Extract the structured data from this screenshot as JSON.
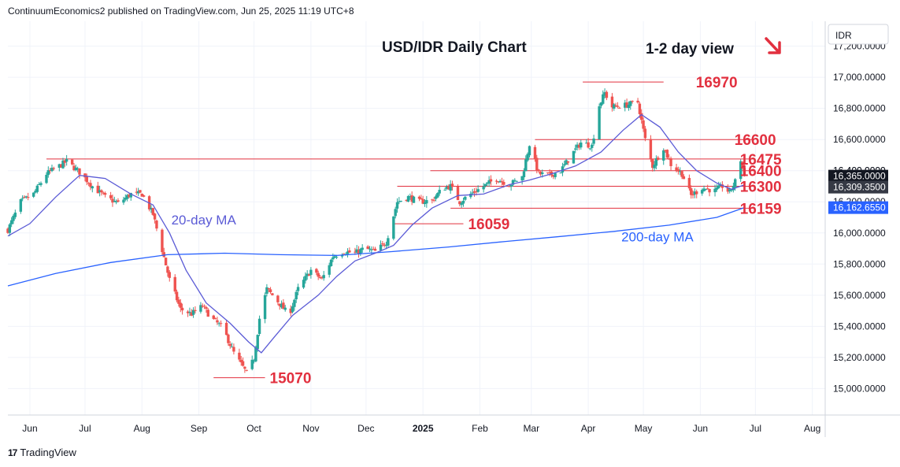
{
  "header": {
    "publisher_line": "ContinuumEconomics2 published on TradingView.com, Jun 25, 2025 11:19 UTC+8"
  },
  "footer": {
    "brand": "TradingView",
    "logo_glyph": "17"
  },
  "colors": {
    "bull": "#26a69a",
    "bear": "#ef5350",
    "annotation_red": "#e2303f",
    "ma_color": "#5b5bd6",
    "line_color": "#e2303f",
    "axis_badge_dark": "#131722",
    "axis_badge_price": "#363a45",
    "axis_badge_blue": "#2962ff"
  },
  "chart_data": {
    "type": "candlestick",
    "title": "USD/IDR Daily Chart",
    "subtitle": "1-2 day view",
    "view_arrow": "down-right-arrow",
    "currency_label": "IDR",
    "ylim": [
      14830,
      17360
    ],
    "y_ticks": [
      15000,
      15200,
      15400,
      15600,
      15800,
      16000,
      16200,
      16400,
      16600,
      16800,
      17000,
      17200
    ],
    "y_tick_labels": [
      "15,000.0000",
      "15,200.0000",
      "15,400.0000",
      "15,600.0000",
      "15,800.0000",
      "16,000.0000",
      "16,200.0000",
      "16,400.0000",
      "16,600.0000",
      "16,800.0000",
      "17,000.0000",
      "17,200.0000"
    ],
    "x_ticks": [
      "2024-06-01",
      "2024-07-01",
      "2024-08-01",
      "2024-09-01",
      "2024-10-01",
      "2024-11-01",
      "2024-12-01",
      "2025-01-01",
      "2025-02-01",
      "2025-03-01",
      "2025-04-01",
      "2025-05-01",
      "2025-06-01",
      "2025-07-01",
      "2025-08-01"
    ],
    "x_tick_labels": [
      "Jun",
      "Jul",
      "Aug",
      "Sep",
      "Oct",
      "Nov",
      "Dec",
      "2025",
      "Feb",
      "Mar",
      "Apr",
      "May",
      "Jun",
      "Jul",
      "Aug"
    ],
    "x_bold": [
      false,
      false,
      false,
      false,
      false,
      false,
      false,
      true,
      false,
      false,
      false,
      false,
      false,
      false,
      false
    ],
    "x_range": [
      "2024-05-20",
      "2025-08-08"
    ],
    "plot_end": "2025-08-12",
    "price_path": [
      [
        "2024-05-20",
        16020
      ],
      [
        "2024-05-27",
        16200
      ],
      [
        "2024-06-03",
        16250
      ],
      [
        "2024-06-10",
        16380
      ],
      [
        "2024-06-17",
        16430
      ],
      [
        "2024-06-21",
        16460
      ],
      [
        "2024-06-28",
        16390
      ],
      [
        "2024-07-05",
        16300
      ],
      [
        "2024-07-12",
        16230
      ],
      [
        "2024-07-19",
        16190
      ],
      [
        "2024-07-26",
        16250
      ],
      [
        "2024-08-01",
        16250
      ],
      [
        "2024-08-07",
        16120
      ],
      [
        "2024-08-12",
        15890
      ],
      [
        "2024-08-16",
        15700
      ],
      [
        "2024-08-22",
        15510
      ],
      [
        "2024-08-28",
        15480
      ],
      [
        "2024-09-03",
        15530
      ],
      [
        "2024-09-08",
        15450
      ],
      [
        "2024-09-14",
        15390
      ],
      [
        "2024-09-20",
        15230
      ],
      [
        "2024-09-27",
        15100
      ],
      [
        "2024-10-01",
        15190
      ],
      [
        "2024-10-04",
        15450
      ],
      [
        "2024-10-08",
        15640
      ],
      [
        "2024-10-14",
        15560
      ],
      [
        "2024-10-20",
        15470
      ],
      [
        "2024-10-25",
        15640
      ],
      [
        "2024-11-01",
        15760
      ],
      [
        "2024-11-07",
        15700
      ],
      [
        "2024-11-13",
        15850
      ],
      [
        "2024-11-19",
        15880
      ],
      [
        "2024-11-25",
        15870
      ],
      [
        "2024-11-30",
        15900
      ],
      [
        "2024-12-06",
        15880
      ],
      [
        "2024-12-12",
        15940
      ],
      [
        "2024-12-18",
        16200
      ],
      [
        "2024-12-24",
        16230
      ],
      [
        "2024-12-30",
        16200
      ],
      [
        "2025-01-06",
        16210
      ],
      [
        "2025-01-12",
        16290
      ],
      [
        "2025-01-16",
        16300
      ],
      [
        "2025-01-21",
        16200
      ],
      [
        "2025-01-27",
        16250
      ],
      [
        "2025-02-03",
        16300
      ],
      [
        "2025-02-10",
        16350
      ],
      [
        "2025-02-17",
        16310
      ],
      [
        "2025-02-24",
        16360
      ],
      [
        "2025-02-28",
        16570
      ],
      [
        "2025-03-05",
        16380
      ],
      [
        "2025-03-11",
        16370
      ],
      [
        "2025-03-17",
        16400
      ],
      [
        "2025-03-24",
        16520
      ],
      [
        "2025-03-28",
        16580
      ],
      [
        "2025-04-03",
        16560
      ],
      [
        "2025-04-07",
        16820
      ],
      [
        "2025-04-10",
        16900
      ],
      [
        "2025-04-14",
        16810
      ],
      [
        "2025-04-21",
        16820
      ],
      [
        "2025-04-28",
        16840
      ],
      [
        "2025-05-02",
        16600
      ],
      [
        "2025-05-06",
        16430
      ],
      [
        "2025-05-12",
        16550
      ],
      [
        "2025-05-16",
        16440
      ],
      [
        "2025-05-22",
        16380
      ],
      [
        "2025-05-27",
        16240
      ],
      [
        "2025-06-02",
        16290
      ],
      [
        "2025-06-09",
        16270
      ],
      [
        "2025-06-13",
        16300
      ],
      [
        "2025-06-17",
        16260
      ],
      [
        "2025-06-20",
        16330
      ],
      [
        "2025-06-23",
        16470
      ],
      [
        "2025-06-25",
        16365
      ]
    ],
    "last_date": "2025-06-25",
    "ma20_path": [
      [
        "2024-05-20",
        15980
      ],
      [
        "2024-06-01",
        16060
      ],
      [
        "2024-06-15",
        16230
      ],
      [
        "2024-06-28",
        16370
      ],
      [
        "2024-07-12",
        16350
      ],
      [
        "2024-07-26",
        16250
      ],
      [
        "2024-08-07",
        16180
      ],
      [
        "2024-08-16",
        16000
      ],
      [
        "2024-08-25",
        15760
      ],
      [
        "2024-09-05",
        15550
      ],
      [
        "2024-09-18",
        15420
      ],
      [
        "2024-09-28",
        15300
      ],
      [
        "2024-10-05",
        15230
      ],
      [
        "2024-10-12",
        15330
      ],
      [
        "2024-10-22",
        15470
      ],
      [
        "2024-11-05",
        15600
      ],
      [
        "2024-11-15",
        15720
      ],
      [
        "2024-11-25",
        15820
      ],
      [
        "2024-12-06",
        15870
      ],
      [
        "2024-12-16",
        15920
      ],
      [
        "2024-12-26",
        16050
      ],
      [
        "2025-01-06",
        16160
      ],
      [
        "2025-01-20",
        16240
      ],
      [
        "2025-02-03",
        16250
      ],
      [
        "2025-02-17",
        16310
      ],
      [
        "2025-02-28",
        16340
      ],
      [
        "2025-03-12",
        16380
      ],
      [
        "2025-03-25",
        16430
      ],
      [
        "2025-04-08",
        16520
      ],
      [
        "2025-04-20",
        16660
      ],
      [
        "2025-04-30",
        16760
      ],
      [
        "2025-05-10",
        16680
      ],
      [
        "2025-05-20",
        16520
      ],
      [
        "2025-05-30",
        16400
      ],
      [
        "2025-06-10",
        16320
      ],
      [
        "2025-06-18",
        16280
      ],
      [
        "2025-06-25",
        16309
      ]
    ],
    "ma200_path": [
      [
        "2024-05-20",
        15660
      ],
      [
        "2024-06-15",
        15740
      ],
      [
        "2024-07-15",
        15810
      ],
      [
        "2024-08-15",
        15860
      ],
      [
        "2024-09-15",
        15870
      ],
      [
        "2024-10-15",
        15860
      ],
      [
        "2024-11-15",
        15855
      ],
      [
        "2024-12-15",
        15880
      ],
      [
        "2025-01-15",
        15910
      ],
      [
        "2025-02-15",
        15945
      ],
      [
        "2025-03-15",
        15975
      ],
      [
        "2025-04-15",
        16010
      ],
      [
        "2025-05-15",
        16050
      ],
      [
        "2025-06-10",
        16100
      ],
      [
        "2025-06-25",
        16162.655
      ]
    ],
    "levels": [
      {
        "label": "16970",
        "value": 16970,
        "from": "2025-03-29",
        "to": "2025-05-12",
        "label_at": "2025-05-27"
      },
      {
        "label": "16600",
        "value": 16600,
        "from": "2025-03-03",
        "to": "2025-06-30",
        "label_at": "2025-06-17"
      },
      {
        "label": "16475",
        "value": 16475,
        "from": "2024-06-10",
        "to": "2025-06-30",
        "label_at": "2025-06-20"
      },
      {
        "label": "16400",
        "value": 16400,
        "from": "2025-01-05",
        "to": "2025-06-30",
        "label_at": "2025-06-20"
      },
      {
        "label": "16300",
        "value": 16300,
        "from": "2024-12-18",
        "to": "2025-06-30",
        "label_at": "2025-06-20"
      },
      {
        "label": "16159",
        "value": 16159,
        "from": "2025-01-16",
        "to": "2025-06-30",
        "label_at": "2025-06-20"
      },
      {
        "label": "16059",
        "value": 16059,
        "from": "2024-12-16",
        "to": "2025-01-23",
        "label_at": "2025-01-23"
      },
      {
        "label": "15070",
        "value": 15070,
        "from": "2024-09-09",
        "to": "2024-10-07",
        "label_at": "2024-10-07"
      }
    ],
    "ma_labels": [
      {
        "label": "20-day MA",
        "value": 16055,
        "date": "2024-08-17",
        "color": "#5b5bd6"
      },
      {
        "label": "200-day MA",
        "value": 15945,
        "date": "2025-04-19",
        "color": "#2962ff"
      }
    ],
    "axis_badges": [
      {
        "text": "16,365.0000",
        "value": 16365,
        "bg": "#131722"
      },
      {
        "text": "16,309.3500",
        "value": 16309.35,
        "bg": "#363a45"
      },
      {
        "text": "16,162.6550",
        "value": 16162.655,
        "bg": "#2962ff"
      }
    ],
    "partial_axis_label": {
      "text": "16,400.0000",
      "value": 16400
    }
  }
}
